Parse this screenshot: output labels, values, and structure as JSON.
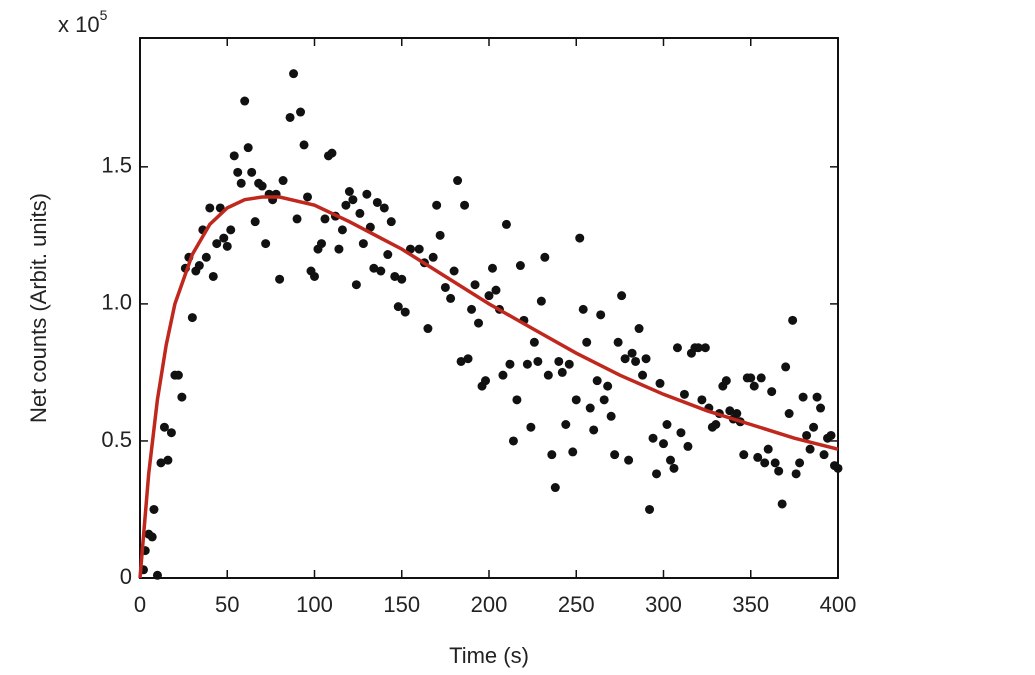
{
  "chart_data": {
    "type": "scatter",
    "xlabel": "Time (s)",
    "ylabel": "Net counts (Arbit. units)",
    "multiplier": {
      "base": "x 10",
      "exponent": "5"
    },
    "xlim": [
      0,
      400
    ],
    "xticks": [
      0,
      50,
      100,
      150,
      200,
      250,
      300,
      350,
      400
    ],
    "ylim": [
      0,
      1.97
    ],
    "yticks": [
      0,
      0.5,
      {
        "value": 1,
        "label": "1.0"
      },
      1.5
    ],
    "series": [
      {
        "color": "#111111",
        "style": "points",
        "x": [
          2,
          3,
          5,
          7,
          8,
          10,
          12,
          14,
          16,
          18,
          20,
          22,
          24,
          26,
          28,
          30,
          32,
          34,
          36,
          38,
          40,
          42,
          44,
          46,
          48,
          50,
          52,
          54,
          56,
          58,
          60,
          62,
          64,
          66,
          68,
          70,
          72,
          74,
          76,
          78,
          80,
          82,
          86,
          88,
          90,
          92,
          94,
          96,
          98,
          100,
          102,
          104,
          106,
          108,
          110,
          112,
          114,
          116,
          118,
          120,
          122,
          124,
          126,
          128,
          130,
          132,
          134,
          136,
          138,
          140,
          142,
          144,
          146,
          148,
          150,
          152,
          155,
          160,
          163,
          165,
          168,
          170,
          172,
          175,
          178,
          180,
          182,
          184,
          186,
          188,
          190,
          192,
          194,
          196,
          198,
          200,
          202,
          204,
          206,
          208,
          210,
          212,
          214,
          216,
          218,
          220,
          222,
          224,
          226,
          228,
          230,
          232,
          234,
          236,
          238,
          240,
          242,
          244,
          246,
          248,
          250,
          252,
          254,
          256,
          258,
          260,
          262,
          264,
          266,
          268,
          270,
          272,
          274,
          276,
          278,
          280,
          282,
          284,
          286,
          288,
          290,
          292,
          294,
          296,
          298,
          300,
          302,
          304,
          306,
          308,
          310,
          312,
          314,
          316,
          318,
          320,
          322,
          324,
          326,
          328,
          330,
          332,
          334,
          336,
          338,
          340,
          342,
          344,
          346,
          348,
          350,
          352,
          354,
          356,
          358,
          360,
          362,
          364,
          366,
          368,
          370,
          372,
          374,
          376,
          378,
          380,
          382,
          384,
          386,
          388,
          390,
          392,
          394,
          396,
          398,
          400
        ],
        "values": [
          0.03,
          0.1,
          0.16,
          0.15,
          0.25,
          0.01,
          0.42,
          0.55,
          0.43,
          0.53,
          0.74,
          0.74,
          0.66,
          1.13,
          1.17,
          0.95,
          1.12,
          1.14,
          1.27,
          1.17,
          1.35,
          1.1,
          1.22,
          1.35,
          1.24,
          1.21,
          1.27,
          1.54,
          1.48,
          1.44,
          1.74,
          1.57,
          1.48,
          1.3,
          1.44,
          1.43,
          1.22,
          1.4,
          1.38,
          1.4,
          1.09,
          1.45,
          1.68,
          1.84,
          1.31,
          1.7,
          1.58,
          1.39,
          1.12,
          1.1,
          1.2,
          1.22,
          1.31,
          1.54,
          1.55,
          1.32,
          1.2,
          1.27,
          1.36,
          1.41,
          1.38,
          1.07,
          1.33,
          1.22,
          1.4,
          1.28,
          1.13,
          1.37,
          1.12,
          1.35,
          1.18,
          1.3,
          1.1,
          0.99,
          1.09,
          0.97,
          1.2,
          1.2,
          1.15,
          0.91,
          1.17,
          1.36,
          1.25,
          1.06,
          1.02,
          1.12,
          1.45,
          0.79,
          1.36,
          0.8,
          0.98,
          1.07,
          0.93,
          0.7,
          0.72,
          1.03,
          1.13,
          1.05,
          0.98,
          0.74,
          1.29,
          0.78,
          0.5,
          0.65,
          1.14,
          0.94,
          0.78,
          0.55,
          0.86,
          0.79,
          1.01,
          1.17,
          0.74,
          0.45,
          0.33,
          0.79,
          0.75,
          0.56,
          0.78,
          0.46,
          0.65,
          1.24,
          0.98,
          0.86,
          0.62,
          0.54,
          0.72,
          0.96,
          0.65,
          0.7,
          0.59,
          0.45,
          0.86,
          1.03,
          0.8,
          0.43,
          0.82,
          0.79,
          0.91,
          0.74,
          0.8,
          0.25,
          0.51,
          0.38,
          0.71,
          0.49,
          0.56,
          0.43,
          0.4,
          0.84,
          0.53,
          0.67,
          0.48,
          0.82,
          0.84,
          0.84,
          0.65,
          0.84,
          0.62,
          0.55,
          0.56,
          0.6,
          0.7,
          0.72,
          0.61,
          0.58,
          0.6,
          0.57,
          0.45,
          0.73,
          0.73,
          0.7,
          0.44,
          0.73,
          0.42,
          0.47,
          0.68,
          0.42,
          0.39,
          0.27,
          0.77,
          0.6,
          0.94,
          0.38,
          0.42,
          0.66,
          0.52,
          0.47,
          0.55,
          0.66,
          0.62,
          0.45,
          0.51,
          0.52,
          0.41,
          0.4
        ]
      },
      {
        "color": "#c0281e",
        "style": "line",
        "x": [
          0,
          5,
          10,
          15,
          20,
          30,
          40,
          50,
          60,
          70,
          80,
          100,
          120,
          150,
          175,
          200,
          225,
          250,
          275,
          300,
          325,
          350,
          375,
          400
        ],
        "values": [
          0,
          0.38,
          0.65,
          0.85,
          1.0,
          1.18,
          1.29,
          1.35,
          1.38,
          1.39,
          1.39,
          1.36,
          1.3,
          1.2,
          1.1,
          1.0,
          0.91,
          0.82,
          0.74,
          0.67,
          0.61,
          0.56,
          0.51,
          0.47
        ]
      }
    ]
  }
}
